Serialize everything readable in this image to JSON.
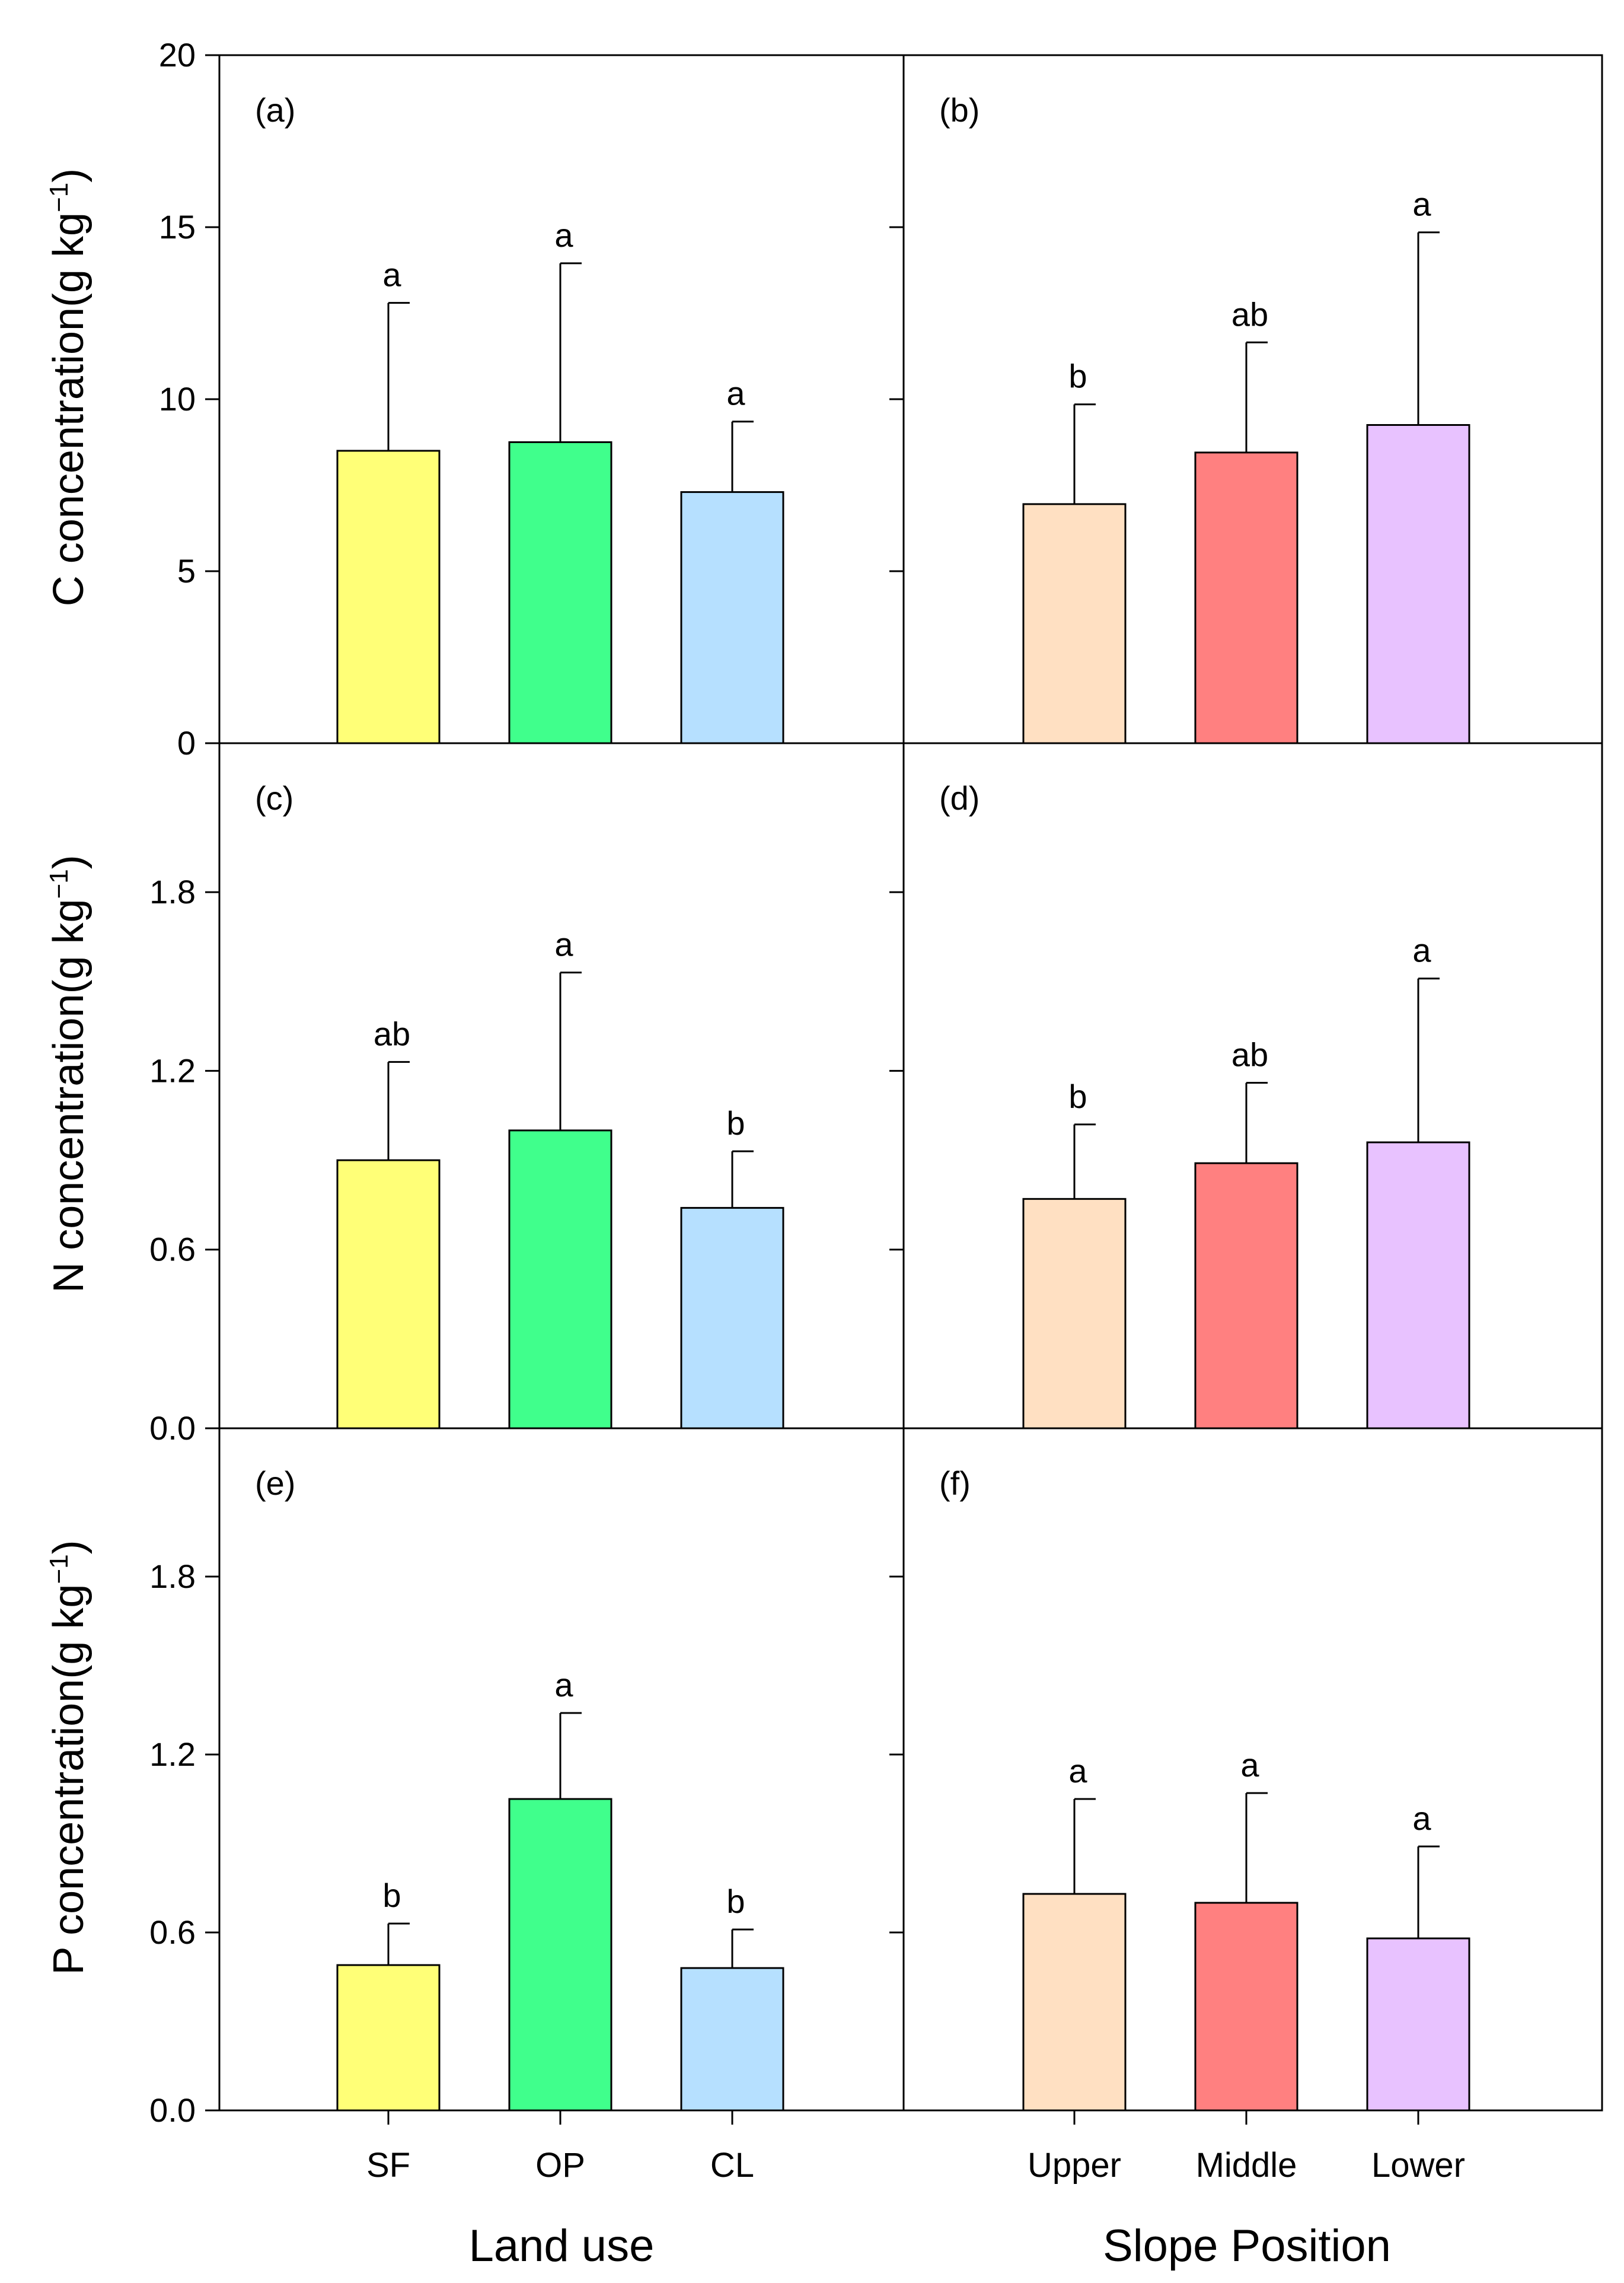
{
  "chart_data": {
    "type": "bar",
    "colors": {
      "SF": "#ffff77",
      "OP": "#40ff8c",
      "CL": "#b6e0ff",
      "Upper": "#ffe0c2",
      "Middle": "#ff8080",
      "Lower": "#e8c2ff"
    },
    "rows": [
      {
        "ylabel": "C concentration(g kg",
        "ylabel_sup": "−1",
        "ylabel_close": ")",
        "ylim": [
          0,
          20
        ],
        "yticks": [
          0,
          5,
          10,
          15,
          20
        ],
        "ytick_labels": [
          "0",
          "5",
          "10",
          "15",
          "20"
        ]
      },
      {
        "ylabel": "N concentration(g kg",
        "ylabel_sup": "−1",
        "ylabel_close": ")",
        "ylim": [
          0,
          2.3
        ],
        "yticks": [
          0,
          0.6,
          1.2,
          1.8
        ],
        "ytick_labels": [
          "0.0",
          "0.6",
          "1.2",
          "1.8"
        ]
      },
      {
        "ylabel": "P concentration(g kg",
        "ylabel_sup": "−1",
        "ylabel_close": ")",
        "ylim": [
          0,
          2.3
        ],
        "yticks": [
          0,
          0.6,
          1.2,
          1.8
        ],
        "ytick_labels": [
          "0.0",
          "0.6",
          "1.2",
          "1.8"
        ]
      }
    ],
    "columns": [
      {
        "xlabel": "Land use",
        "categories": [
          "SF",
          "OP",
          "CL"
        ]
      },
      {
        "xlabel": "Slope Position",
        "categories": [
          "Upper",
          "Middle",
          "Lower"
        ]
      }
    ],
    "panels": [
      {
        "label": "(a)",
        "row": 0,
        "col": 0,
        "values": [
          8.5,
          8.75,
          7.3
        ],
        "errors": [
          4.3,
          5.2,
          2.05
        ],
        "sig": [
          "a",
          "a",
          "a"
        ]
      },
      {
        "label": "(b)",
        "row": 0,
        "col": 1,
        "values": [
          6.95,
          8.45,
          9.25
        ],
        "errors": [
          2.9,
          3.2,
          5.6
        ],
        "sig": [
          "b",
          "ab",
          "a"
        ]
      },
      {
        "label": "(c)",
        "row": 1,
        "col": 0,
        "values": [
          0.9,
          1.0,
          0.74
        ],
        "errors": [
          0.33,
          0.53,
          0.19
        ],
        "sig": [
          "ab",
          "a",
          "b"
        ]
      },
      {
        "label": "(d)",
        "row": 1,
        "col": 1,
        "values": [
          0.77,
          0.89,
          0.96
        ],
        "errors": [
          0.25,
          0.27,
          0.55
        ],
        "sig": [
          "b",
          "ab",
          "a"
        ]
      },
      {
        "label": "(e)",
        "row": 2,
        "col": 0,
        "values": [
          0.49,
          1.05,
          0.48
        ],
        "errors": [
          0.14,
          0.29,
          0.13
        ],
        "sig": [
          "b",
          "a",
          "b"
        ]
      },
      {
        "label": "(f)",
        "row": 2,
        "col": 1,
        "values": [
          0.73,
          0.7,
          0.58
        ],
        "errors": [
          0.32,
          0.37,
          0.31
        ],
        "sig": [
          "a",
          "a",
          "a"
        ]
      }
    ]
  }
}
